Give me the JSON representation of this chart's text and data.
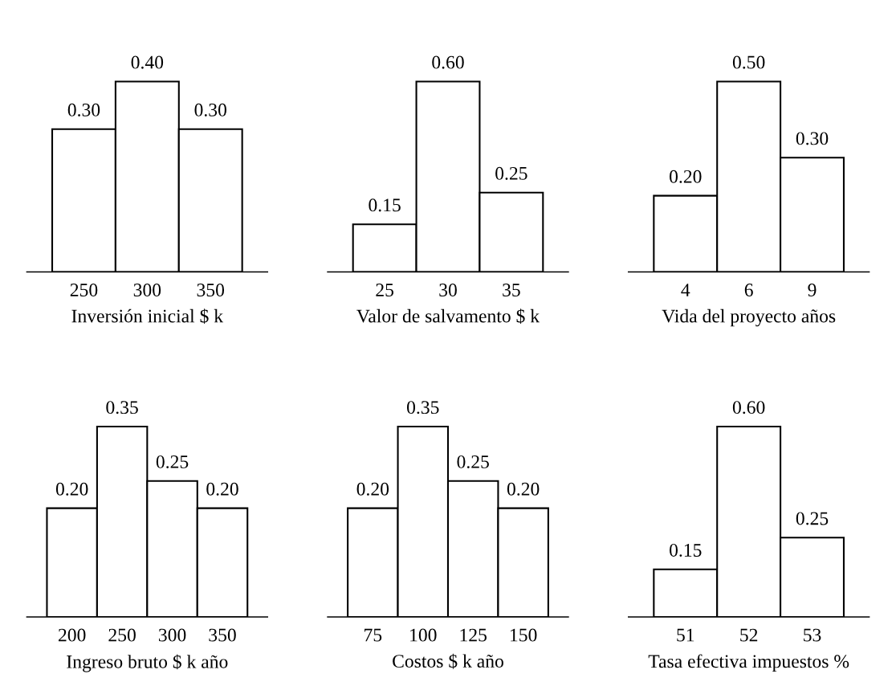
{
  "chart_data": [
    {
      "type": "bar",
      "xlabel": "Inversión inicial $ k",
      "categories": [
        "250",
        "300",
        "350"
      ],
      "values": [
        0.3,
        0.4,
        0.3
      ],
      "value_labels": [
        "0.30",
        "0.40",
        "0.30"
      ],
      "color": "#ffffff",
      "tick_labels": "x",
      "grid": false,
      "legend": false
    },
    {
      "type": "bar",
      "xlabel": "Valor de salvamento $ k",
      "categories": [
        "25",
        "30",
        "35"
      ],
      "values": [
        0.15,
        0.6,
        0.25
      ],
      "value_labels": [
        "0.15",
        "0.60",
        "0.25"
      ],
      "color": "#ffffff",
      "tick_labels": "x",
      "grid": false,
      "legend": false
    },
    {
      "type": "bar",
      "xlabel": "Vida del proyecto años",
      "categories": [
        "4",
        "6",
        "9"
      ],
      "values": [
        0.2,
        0.5,
        0.3
      ],
      "value_labels": [
        "0.20",
        "0.50",
        "0.30"
      ],
      "color": "#ffffff",
      "tick_labels": "x",
      "grid": false,
      "legend": false
    },
    {
      "type": "bar",
      "xlabel": "Ingreso bruto $ k año",
      "categories": [
        "200",
        "250",
        "300",
        "350"
      ],
      "values": [
        0.2,
        0.35,
        0.25,
        0.2
      ],
      "value_labels": [
        "0.20",
        "0.35",
        "0.25",
        "0.20"
      ],
      "color": "#ffffff",
      "tick_labels": "x",
      "grid": false,
      "legend": false
    },
    {
      "type": "bar",
      "xlabel": "Costos $ k año",
      "categories": [
        "75",
        "100",
        "125",
        "150"
      ],
      "values": [
        0.2,
        0.35,
        0.25,
        0.2
      ],
      "value_labels": [
        "0.20",
        "0.35",
        "0.25",
        "0.20"
      ],
      "color": "#ffffff",
      "tick_labels": "x",
      "grid": false,
      "legend": false
    },
    {
      "type": "bar",
      "xlabel": "Tasa efectiva impuestos %",
      "categories": [
        "51",
        "52",
        "53"
      ],
      "values": [
        0.15,
        0.6,
        0.25
      ],
      "value_labels": [
        "0.15",
        "0.60",
        "0.25"
      ],
      "color": "#ffffff",
      "tick_labels": "x",
      "grid": false,
      "legend": false
    }
  ]
}
